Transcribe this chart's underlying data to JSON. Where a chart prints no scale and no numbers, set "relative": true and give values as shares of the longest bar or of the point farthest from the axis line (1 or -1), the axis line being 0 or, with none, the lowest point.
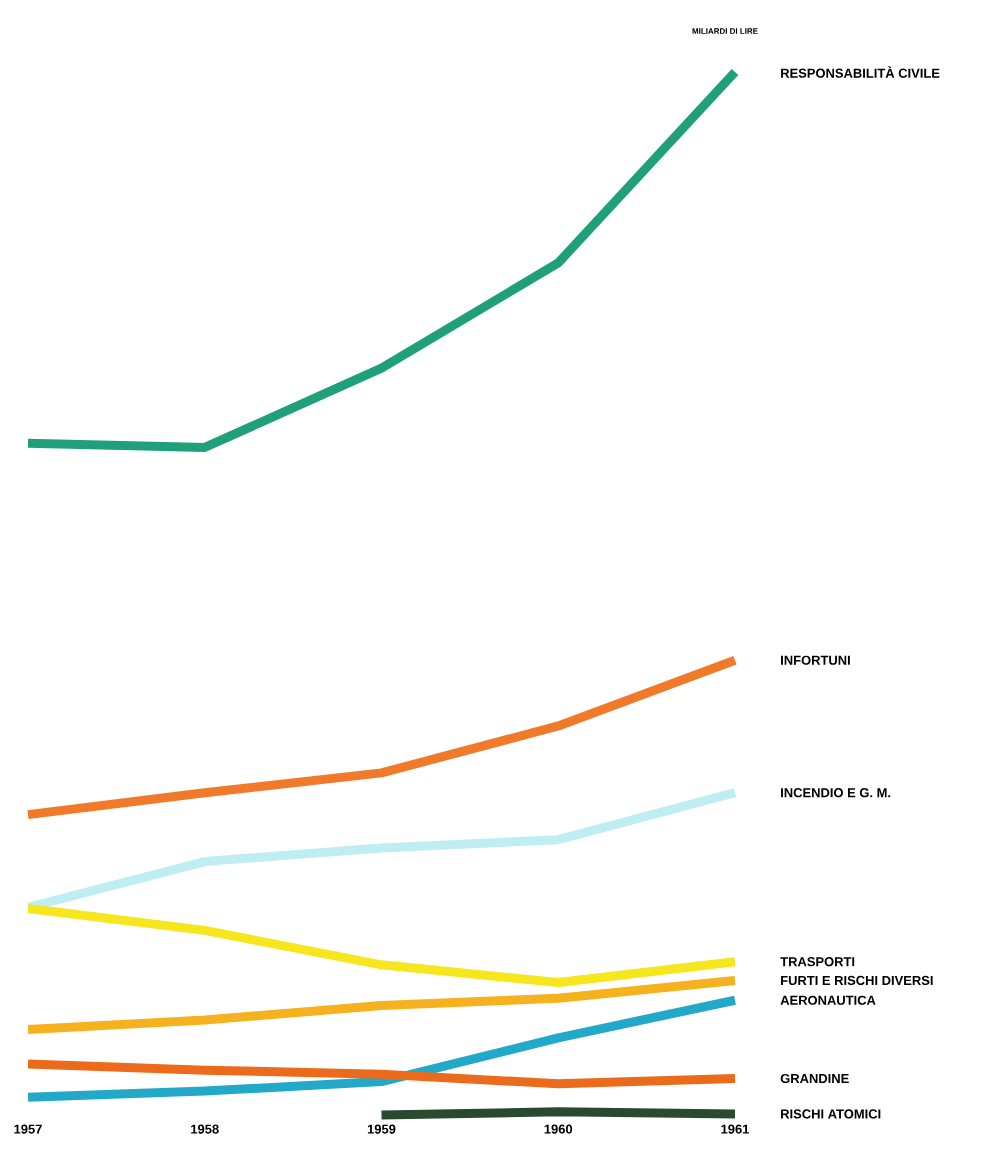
{
  "chart_data": {
    "type": "line",
    "relative": true,
    "ylabel": "MILIARDI DI LIRE",
    "marker": "none",
    "line_style": "solid",
    "categories": [
      "1957",
      "1958",
      "1959",
      "1960",
      "1961"
    ],
    "series": [
      {
        "name": "RESPONSABILITÀ CIVILE",
        "color": "#1fa07a",
        "values": [
          0.644,
          0.64,
          0.716,
          0.817,
          1
        ]
      },
      {
        "name": "INFORTUNI",
        "color": "#f07a2a",
        "values": [
          0.288,
          0.309,
          0.328,
          0.373,
          0.436
        ]
      },
      {
        "name": "INCENDIO E G. M.",
        "color": "#bfeef2",
        "values": [
          0.199,
          0.243,
          0.256,
          0.264,
          0.309
        ]
      },
      {
        "name": "TRASPORTI",
        "color": "#f5e61e",
        "values": [
          0.198,
          0.177,
          0.144,
          0.127,
          0.147
        ]
      },
      {
        "name": "FURTI E RISCHI DIVERSI",
        "color": "#f5b21e",
        "values": [
          0.082,
          0.091,
          0.105,
          0.112,
          0.129
        ]
      },
      {
        "name": "AERONAUTICA",
        "color": "#22a8c8",
        "values": [
          0.017,
          0.023,
          0.032,
          0.074,
          0.11
        ]
      },
      {
        "name": "GRANDINE",
        "color": "#ec6a1c",
        "values": [
          0.049,
          0.043,
          0.039,
          0.03,
          0.035
        ]
      },
      {
        "name": "RISCHI ATOMICI",
        "color": "#2a4a30",
        "values": [
          null,
          null,
          0,
          0.003,
          0.001
        ]
      }
    ]
  }
}
